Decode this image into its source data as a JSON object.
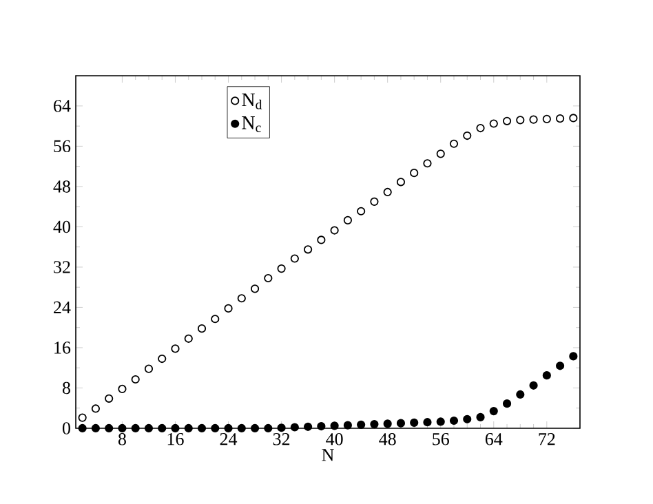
{
  "chart_data": {
    "type": "scatter",
    "xlabel": "N",
    "marker": "circle",
    "legend": "top left",
    "x": [
      2,
      4,
      6,
      8,
      10,
      12,
      14,
      16,
      18,
      20,
      22,
      24,
      26,
      28,
      30,
      32,
      34,
      36,
      38,
      40,
      42,
      44,
      46,
      48,
      50,
      52,
      54,
      56,
      58,
      60,
      62,
      64,
      66,
      68,
      70,
      72,
      74,
      76
    ],
    "series": [
      {
        "name": "N$_{d}$",
        "color": "#000000",
        "values": [
          2.1,
          3.9,
          5.9,
          7.8,
          9.7,
          11.8,
          13.8,
          15.8,
          17.8,
          19.8,
          21.7,
          23.8,
          25.8,
          27.7,
          29.8,
          31.7,
          33.7,
          35.5,
          37.4,
          39.3,
          41.3,
          43.1,
          45.0,
          46.9,
          48.9,
          50.7,
          52.6,
          54.5,
          56.5,
          58.1,
          59.6,
          60.5,
          61.0,
          61.2,
          61.3,
          61.4,
          61.5,
          61.6
        ]
      },
      {
        "name": "N$_{c}$",
        "color": "#000000",
        "values": [
          0,
          0,
          0,
          0,
          0,
          0,
          0,
          0,
          0,
          0,
          0,
          0,
          0,
          0,
          0,
          0.1,
          0.2,
          0.3,
          0.4,
          0.5,
          0.6,
          0.7,
          0.8,
          0.9,
          1.0,
          1.1,
          1.2,
          1.3,
          1.5,
          1.8,
          2.2,
          3.4,
          4.9,
          6.7,
          8.5,
          10.5,
          12.4,
          14.3
        ]
      }
    ],
    "xlim": [
      1,
      77
    ],
    "ylim": [
      0,
      70
    ],
    "xticks": [
      8,
      16,
      24,
      32,
      40,
      48,
      56,
      64,
      72
    ],
    "yticks": [
      0,
      8,
      16,
      24,
      32,
      40,
      48,
      56,
      64
    ]
  }
}
